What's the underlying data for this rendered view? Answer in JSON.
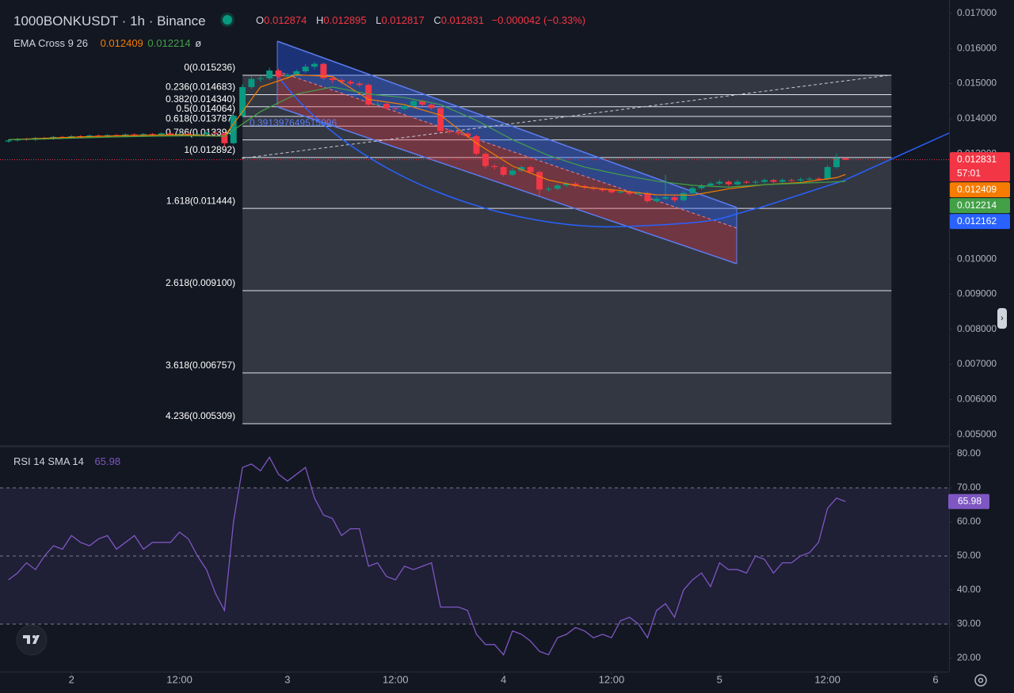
{
  "chart_data": [
    {
      "type": "candlestick",
      "title": "1000BONKUSDT · 1h · Binance",
      "ohlc_keys": [
        "O",
        "H",
        "L",
        "C"
      ],
      "change": "−0.000042 (−0.33%)",
      "indicator": {
        "name": "EMA Cross 9 26",
        "symbol": "ø"
      },
      "up_color": "#089981",
      "down_color": "#f23645",
      "x": [
        -7,
        -6,
        -5,
        -4,
        -3,
        -2,
        -1,
        0,
        1,
        2,
        3,
        4,
        5,
        6,
        7,
        8,
        9,
        10,
        11,
        12,
        13,
        14,
        15,
        16,
        17,
        18,
        19,
        20,
        21,
        22,
        23,
        24,
        25,
        26,
        27,
        28,
        29,
        30,
        31,
        32,
        33,
        34,
        35,
        36,
        37,
        38,
        39,
        40,
        41,
        42,
        43,
        44,
        45,
        46,
        47,
        48,
        49,
        50,
        51,
        52,
        53,
        54,
        55,
        56,
        57,
        58,
        59,
        60,
        61,
        62,
        63,
        64,
        65,
        66,
        67,
        68,
        69,
        70,
        71,
        72,
        73,
        74,
        75,
        76,
        77,
        78,
        79,
        80,
        81,
        82,
        83,
        84,
        85,
        86
      ],
      "open": [
        0.01335,
        0.01338,
        0.01342,
        0.0134,
        0.01345,
        0.01343,
        0.01348,
        0.01346,
        0.0135,
        0.01347,
        0.01352,
        0.01349,
        0.01353,
        0.01351,
        0.01355,
        0.01352,
        0.01356,
        0.01354,
        0.01358,
        0.01355,
        0.01357,
        0.01354,
        0.01356,
        0.0136,
        0.01358,
        0.0133,
        0.01408,
        0.0149,
        0.01513,
        0.01515,
        0.01537,
        0.0152,
        0.01525,
        0.01535,
        0.01548,
        0.01556,
        0.01515,
        0.0151,
        0.01505,
        0.015,
        0.01496,
        0.0144,
        0.01442,
        0.0143,
        0.01428,
        0.01436,
        0.0145,
        0.0144,
        0.0143,
        0.01365,
        0.01362,
        0.01358,
        0.0135,
        0.013,
        0.01265,
        0.01262,
        0.0124,
        0.01252,
        0.01262,
        0.01248,
        0.01198,
        0.012,
        0.0121,
        0.01215,
        0.01208,
        0.01204,
        0.012,
        0.01196,
        0.0119,
        0.01192,
        0.01186,
        0.01188,
        0.01165,
        0.01172,
        0.01176,
        0.01168,
        0.01188,
        0.01202,
        0.0121,
        0.01215,
        0.0122,
        0.01213,
        0.0122,
        0.01218,
        0.0122,
        0.01225,
        0.0122,
        0.01225,
        0.01224,
        0.01227,
        0.01229,
        0.01228,
        0.01262,
        0.012874
      ],
      "high": [
        0.01341,
        0.01345,
        0.01345,
        0.01348,
        0.01348,
        0.01351,
        0.01351,
        0.01353,
        0.01353,
        0.01355,
        0.01355,
        0.01356,
        0.01356,
        0.01358,
        0.01358,
        0.01359,
        0.01359,
        0.01361,
        0.01361,
        0.0136,
        0.0136,
        0.01359,
        0.01363,
        0.01363,
        0.01361,
        0.01415,
        0.01498,
        0.0152,
        0.01522,
        0.01545,
        0.01542,
        0.0153,
        0.0154,
        0.01555,
        0.01562,
        0.0156,
        0.0152,
        0.01515,
        0.0151,
        0.01505,
        0.015,
        0.01448,
        0.01446,
        0.01436,
        0.01442,
        0.01456,
        0.01454,
        0.01445,
        0.01435,
        0.0137,
        0.01367,
        0.01362,
        0.01354,
        0.01305,
        0.0127,
        0.01266,
        0.01258,
        0.01268,
        0.01266,
        0.01252,
        0.01206,
        0.01215,
        0.0122,
        0.0122,
        0.01212,
        0.01208,
        0.01204,
        0.012,
        0.01197,
        0.01196,
        0.01193,
        0.01192,
        0.01178,
        0.0124,
        0.0118,
        0.01194,
        0.01207,
        0.01215,
        0.0122,
        0.01226,
        0.01224,
        0.01225,
        0.01224,
        0.01226,
        0.0123,
        0.01229,
        0.0123,
        0.01229,
        0.01232,
        0.01234,
        0.01233,
        0.01268,
        0.013,
        0.012895
      ],
      "low": [
        0.01332,
        0.01335,
        0.01337,
        0.01337,
        0.0134,
        0.0134,
        0.01343,
        0.01343,
        0.01344,
        0.01344,
        0.01346,
        0.01346,
        0.01348,
        0.01348,
        0.01349,
        0.01349,
        0.01351,
        0.01351,
        0.01352,
        0.01352,
        0.01351,
        0.01351,
        0.01353,
        0.01355,
        0.0132,
        0.01327,
        0.01405,
        0.01485,
        0.01505,
        0.0151,
        0.01515,
        0.01512,
        0.0152,
        0.0153,
        0.0154,
        0.0151,
        0.01502,
        0.01498,
        0.01494,
        0.0149,
        0.01435,
        0.01434,
        0.01425,
        0.01422,
        0.01424,
        0.01432,
        0.01436,
        0.01425,
        0.0136,
        0.01356,
        0.01352,
        0.01345,
        0.01295,
        0.01258,
        0.01255,
        0.01235,
        0.01236,
        0.01248,
        0.01243,
        0.0118,
        0.01192,
        0.01196,
        0.01205,
        0.01203,
        0.01199,
        0.01195,
        0.01191,
        0.01185,
        0.01186,
        0.01181,
        0.01182,
        0.0116,
        0.01161,
        0.01168,
        0.01162,
        0.01164,
        0.01184,
        0.01198,
        0.01206,
        0.01211,
        0.01208,
        0.01209,
        0.01214,
        0.01214,
        0.01216,
        0.01216,
        0.01216,
        0.0122,
        0.0122,
        0.01223,
        0.01224,
        0.01225,
        0.01258,
        0.012817
      ],
      "close": [
        0.01338,
        0.01342,
        0.0134,
        0.01345,
        0.01343,
        0.01348,
        0.01346,
        0.0135,
        0.01347,
        0.01352,
        0.01349,
        0.01353,
        0.01351,
        0.01355,
        0.01352,
        0.01356,
        0.01354,
        0.01358,
        0.01355,
        0.01357,
        0.01354,
        0.01356,
        0.0136,
        0.01358,
        0.0133,
        0.01408,
        0.0149,
        0.01513,
        0.01515,
        0.01537,
        0.0152,
        0.01525,
        0.01535,
        0.01548,
        0.01556,
        0.01515,
        0.0151,
        0.01505,
        0.015,
        0.01496,
        0.0144,
        0.01442,
        0.0143,
        0.01428,
        0.01436,
        0.0145,
        0.0144,
        0.0143,
        0.01365,
        0.01362,
        0.01358,
        0.0135,
        0.013,
        0.01265,
        0.01262,
        0.0124,
        0.01252,
        0.01262,
        0.01248,
        0.01198,
        0.012,
        0.0121,
        0.01215,
        0.01208,
        0.01204,
        0.012,
        0.01196,
        0.0119,
        0.01192,
        0.01186,
        0.01188,
        0.01165,
        0.01172,
        0.01176,
        0.01168,
        0.01188,
        0.01202,
        0.0121,
        0.01215,
        0.0122,
        0.01213,
        0.0122,
        0.01218,
        0.0122,
        0.01225,
        0.0122,
        0.01225,
        0.01224,
        0.01227,
        0.01229,
        0.01228,
        0.01262,
        0.012874,
        0.012831
      ],
      "ema": [
        {
          "color": "#f57c00",
          "x": [
            -7,
            -3,
            1,
            5,
            9,
            13,
            17,
            21,
            25,
            29,
            33,
            37,
            41,
            45,
            49,
            53,
            57,
            61,
            65,
            69,
            73,
            77,
            81,
            85,
            86
          ],
          "values": [
            0.0134,
            0.01344,
            0.01348,
            0.01351,
            0.01353,
            0.01354,
            0.0135,
            0.0149,
            0.01525,
            0.0152,
            0.01455,
            0.0144,
            0.0141,
            0.0133,
            0.01265,
            0.01225,
            0.01205,
            0.01195,
            0.01183,
            0.01182,
            0.012,
            0.01212,
            0.01218,
            0.01232,
            0.012409
          ]
        },
        {
          "color": "#43a047",
          "x": [
            -7,
            -3,
            1,
            5,
            9,
            13,
            17,
            21,
            25,
            29,
            33,
            37,
            41,
            45,
            49,
            53,
            57,
            61,
            65,
            69,
            73,
            77,
            81,
            85,
            86
          ],
          "values": [
            0.0134,
            0.01342,
            0.01345,
            0.01348,
            0.0135,
            0.01351,
            0.0135,
            0.0142,
            0.0147,
            0.0149,
            0.0147,
            0.0146,
            0.0144,
            0.01395,
            0.0134,
            0.01295,
            0.01262,
            0.0124,
            0.01222,
            0.0121,
            0.01205,
            0.01212,
            0.01216,
            0.0122,
            0.012214
          ]
        }
      ],
      "fib": {
        "x": [
          19,
          91.1
        ],
        "levels": [
          {
            "label": "0(0.015236)",
            "value": 0.015236
          },
          {
            "label": "0.236(0.014683)",
            "value": 0.014683
          },
          {
            "label": "0.382(0.014340)",
            "value": 0.01434
          },
          {
            "label": "0.5(0.014064)",
            "value": 0.014064
          },
          {
            "label": "0.618(0.013787)",
            "value": 0.013787
          },
          {
            "label": "0.786(0.013394)",
            "value": 0.013394
          },
          {
            "label": "1(0.012892)",
            "value": 0.012892
          },
          {
            "label": "1.618(0.011444)",
            "value": 0.011444
          },
          {
            "label": "2.618(0.009100)",
            "value": 0.0091
          },
          {
            "label": "3.618(0.006757)",
            "value": 0.006757
          },
          {
            "label": "4.236(0.005309)",
            "value": 0.005309
          }
        ]
      },
      "annotation": "0.391397649515096",
      "countdown": "57:01",
      "trend": {
        "value": 0.012162,
        "color": "#2962ff"
      },
      "xlim": [
        -7.94,
        97.5
      ],
      "xticks": [
        {
          "value": 0,
          "label": "2"
        },
        {
          "value": 12,
          "label": "12:00"
        },
        {
          "value": 24,
          "label": "3"
        },
        {
          "value": 36,
          "label": "12:00"
        },
        {
          "value": 48,
          "label": "4"
        },
        {
          "value": 60,
          "label": "12:00"
        },
        {
          "value": 72,
          "label": "5"
        },
        {
          "value": 84,
          "label": "12:00"
        },
        {
          "value": 96,
          "label": "6"
        }
      ],
      "ylim": [
        0.0047,
        0.01738
      ],
      "yticks": [
        {
          "value": 0.017,
          "label": "0.017000"
        },
        {
          "value": 0.016,
          "label": "0.016000"
        },
        {
          "value": 0.015,
          "label": "0.015000"
        },
        {
          "value": 0.014,
          "label": "0.014000"
        },
        {
          "value": 0.013,
          "label": "0.013000"
        },
        {
          "value": 0.012,
          "label": "0.012000"
        },
        {
          "value": 0.011,
          "label": "0.011000"
        },
        {
          "value": 0.01,
          "label": "0.010000"
        },
        {
          "value": 0.009,
          "label": "0.009000"
        },
        {
          "value": 0.008,
          "label": "0.008000"
        },
        {
          "value": 0.007,
          "label": "0.007000"
        },
        {
          "value": 0.006,
          "label": "0.006000"
        },
        {
          "value": 0.005,
          "label": "0.005000"
        }
      ]
    },
    {
      "type": "line",
      "title": "RSI 14 SMA 14",
      "color": "#7e57c2",
      "x": [
        -7,
        -6,
        -5,
        -4,
        -3,
        -2,
        -1,
        0,
        1,
        2,
        3,
        4,
        5,
        6,
        7,
        8,
        9,
        10,
        11,
        12,
        13,
        14,
        15,
        16,
        17,
        18,
        19,
        20,
        21,
        22,
        23,
        24,
        25,
        26,
        27,
        28,
        29,
        30,
        31,
        32,
        33,
        34,
        35,
        36,
        37,
        38,
        39,
        40,
        41,
        42,
        43,
        44,
        45,
        46,
        47,
        48,
        49,
        50,
        51,
        52,
        53,
        54,
        55,
        56,
        57,
        58,
        59,
        60,
        61,
        62,
        63,
        64,
        65,
        66,
        67,
        68,
        69,
        70,
        71,
        72,
        73,
        74,
        75,
        76,
        77,
        78,
        79,
        80,
        81,
        82,
        83,
        84,
        85,
        86
      ],
      "values": [
        43,
        45,
        48,
        46,
        50,
        53,
        52,
        56,
        54,
        53,
        55,
        56,
        52,
        54,
        56,
        52,
        54,
        54,
        54,
        57,
        55,
        50,
        46,
        39,
        34,
        60,
        76,
        77,
        75,
        79,
        74,
        72,
        74,
        76,
        67,
        62,
        61,
        56,
        58,
        58,
        47,
        48,
        44,
        43,
        47,
        46,
        47,
        48,
        35,
        35,
        35,
        34,
        27,
        24,
        24,
        21,
        28,
        27,
        25,
        22,
        21,
        26,
        27,
        29,
        28,
        26,
        27,
        26,
        31,
        32,
        30,
        26,
        34,
        36,
        32,
        40,
        43,
        45,
        41,
        48,
        46,
        46,
        45,
        50,
        49,
        45,
        48,
        48,
        50,
        51,
        54,
        64,
        67,
        65.98
      ],
      "levels": [
        70,
        50,
        30
      ],
      "xlim": [
        -7.94,
        97.5
      ],
      "ylim": [
        16.05,
        81.86
      ],
      "yticks": [
        {
          "value": 80,
          "label": "80.00"
        },
        {
          "value": 70,
          "label": "70.00"
        },
        {
          "value": 60,
          "label": "60.00"
        },
        {
          "value": 50,
          "label": "50.00"
        },
        {
          "value": 40,
          "label": "40.00"
        },
        {
          "value": 30,
          "label": "30.00"
        },
        {
          "value": 20,
          "label": "20.00"
        }
      ]
    }
  ]
}
